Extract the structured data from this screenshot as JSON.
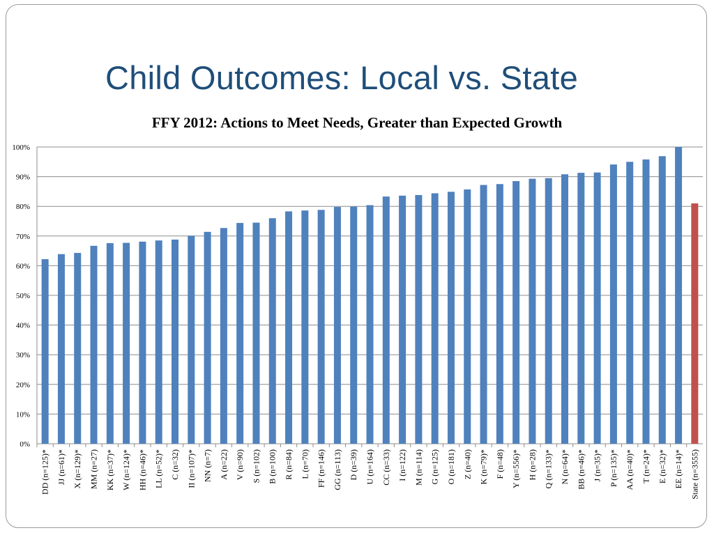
{
  "slide": {
    "title": "Child Outcomes: Local vs. State"
  },
  "chart_data": {
    "type": "bar",
    "title": "FFY 2012: Actions to Meet Needs, Greater than Expected Growth",
    "xlabel": "",
    "ylabel": "",
    "ylim": [
      0,
      100
    ],
    "y_ticks": [
      "0%",
      "10%",
      "20%",
      "30%",
      "40%",
      "50%",
      "60%",
      "70%",
      "80%",
      "90%",
      "100%"
    ],
    "grid": true,
    "legend": "none",
    "colors": {
      "local": "#4f81bd",
      "state": "#c0504d"
    },
    "categories": [
      "DD (n=125)*",
      "JJ (n=61)*",
      "X (n=129)*",
      "MM (n=27)",
      "KK (n=37)*",
      "W (n=124)*",
      "HH (n=46)*",
      "LL (n=52)*",
      "C (n=32)",
      "II (n=107)*",
      "NN (n=7)",
      "A (n=22)",
      "V (n=90)",
      "S (n=102)",
      "B (n=100)",
      "R (n=84)",
      "L (n=70)",
      "FF (n=146)",
      "GG (n=113)",
      "D (n=39)",
      "U (n=164)",
      "CC (n=33)",
      "I (n=122)",
      "M (n=114)",
      "G (n=125)",
      "O (n=181)",
      "Z (n=40)",
      "K (n=79)*",
      "F (n=48)",
      "Y (n=556)*",
      "H (n=28)",
      "Q (n=133)*",
      "N (n=64)*",
      "BB (n=46)*",
      "J (n=35)*",
      "P (n=135)*",
      "AA (n=40)*",
      "T (n=24)*",
      "E (n=32)*",
      "EE (n=14)*",
      "State (n=3555)"
    ],
    "values": [
      62.2,
      63.9,
      64.3,
      66.7,
      67.6,
      67.7,
      68.1,
      68.5,
      68.8,
      70.1,
      71.4,
      72.7,
      74.4,
      74.5,
      76.0,
      78.3,
      78.6,
      78.8,
      79.8,
      79.9,
      80.4,
      83.3,
      83.6,
      83.8,
      84.4,
      84.9,
      85.7,
      87.2,
      87.5,
      88.5,
      89.3,
      89.5,
      90.8,
      91.3,
      91.4,
      94.1,
      95.0,
      95.8,
      96.9,
      100.0,
      81.0
    ],
    "series_type": [
      "local",
      "local",
      "local",
      "local",
      "local",
      "local",
      "local",
      "local",
      "local",
      "local",
      "local",
      "local",
      "local",
      "local",
      "local",
      "local",
      "local",
      "local",
      "local",
      "local",
      "local",
      "local",
      "local",
      "local",
      "local",
      "local",
      "local",
      "local",
      "local",
      "local",
      "local",
      "local",
      "local",
      "local",
      "local",
      "local",
      "local",
      "local",
      "local",
      "local",
      "state"
    ]
  }
}
